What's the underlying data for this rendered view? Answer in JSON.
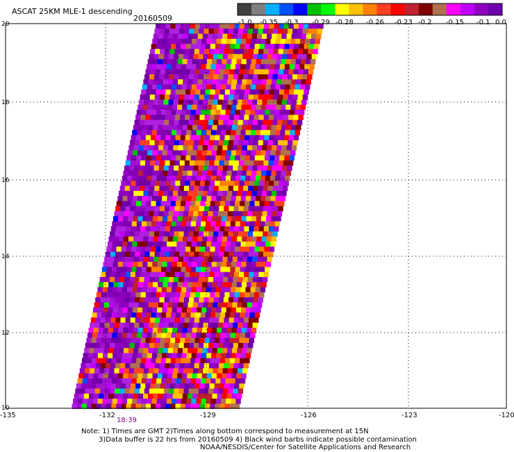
{
  "header": {
    "title": "ASCAT 25KM MLE-1 descending",
    "date": "20160509"
  },
  "colorbar": {
    "colors": [
      "#404040",
      "#7f7f7f",
      "#00b0ff",
      "#0050ff",
      "#0000ff",
      "#00c000",
      "#00ff00",
      "#ffff00",
      "#ffc000",
      "#ff8000",
      "#ff4020",
      "#ff0000",
      "#c02030",
      "#800000",
      "#b07050",
      "#ff00ff",
      "#c000ff",
      "#9000c0",
      "#7000b0"
    ],
    "labels": [
      "-1.0",
      "-0.35",
      "-0.3",
      "-0.29",
      "-0.28",
      "-0.26",
      "-0.23",
      "-0.2",
      "-0.15",
      "-0.1",
      "0.0"
    ]
  },
  "axes": {
    "xticks": [
      "-135",
      "-132",
      "-129",
      "-126",
      "-123",
      "-120"
    ],
    "yticks": [
      "20",
      "18",
      "16",
      "14",
      "12",
      "10"
    ]
  },
  "time_label": "18:39",
  "footer": {
    "line1": "Note: 1) Times are GMT 2)Times along bottom correspond to measurement at 15N",
    "line2": "3)Data buffer is 22 hrs from 20160509 4) Black wind barbs indicate possible contamination",
    "line3": "NOAA/NESDIS/Center for Satellite Applications and Research"
  }
}
